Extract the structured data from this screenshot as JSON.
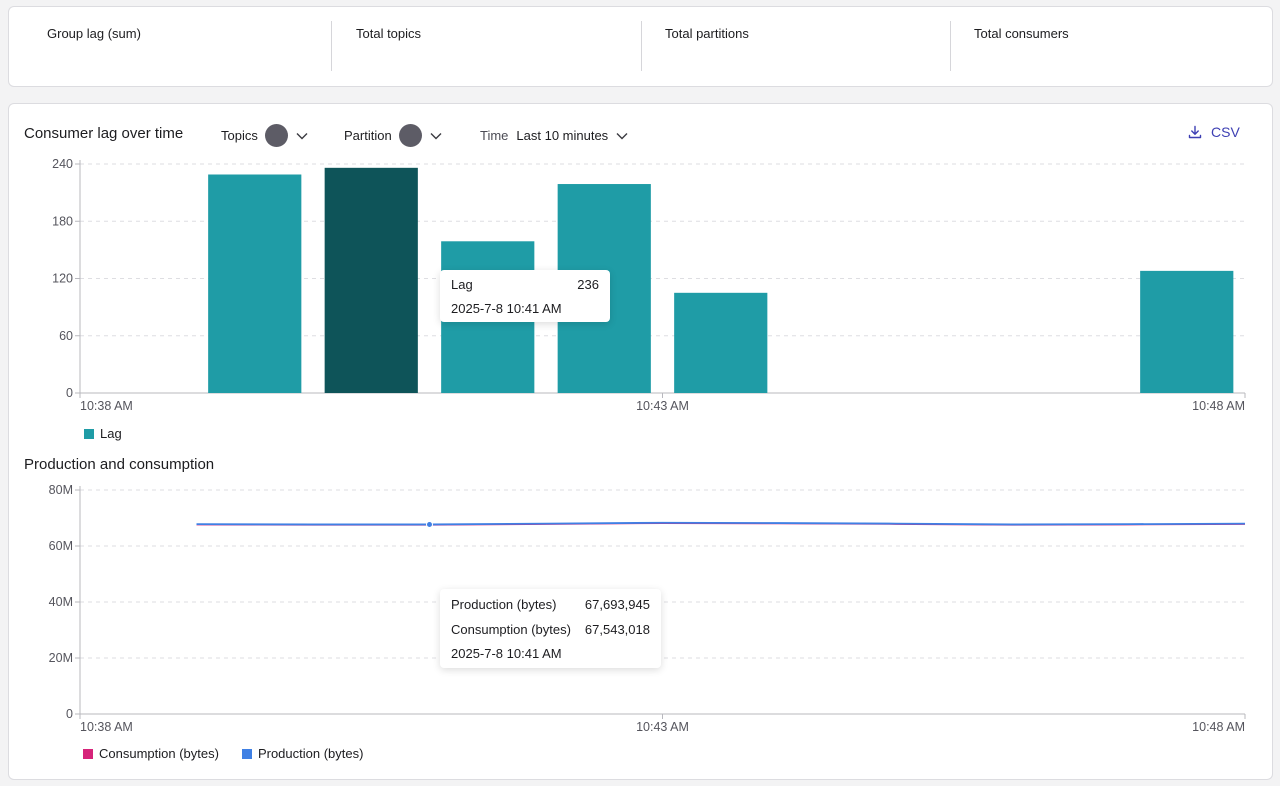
{
  "stats": [
    {
      "label": "Group lag (sum)"
    },
    {
      "label": "Total topics"
    },
    {
      "label": "Total partitions"
    },
    {
      "label": "Total consumers"
    }
  ],
  "lag_section": {
    "title": "Consumer lag over time",
    "filters": {
      "topics_label": "Topics",
      "partition_label": "Partition",
      "time_label": "Time",
      "time_value": "Last 10 minutes"
    },
    "csv_label": "CSV",
    "legend": "Lag",
    "tooltip": {
      "label": "Lag",
      "value": "236",
      "time": "2025-7-8 10:41 AM"
    }
  },
  "prod_section": {
    "title": "Production and consumption",
    "legend": [
      "Consumption (bytes)",
      "Production (bytes)"
    ],
    "tooltip": {
      "rows": [
        {
          "label": "Production (bytes)",
          "value": "67,693,945"
        },
        {
          "label": "Consumption (bytes)",
          "value": "67,543,018"
        }
      ],
      "time": "2025-7-8 10:41 AM"
    }
  },
  "colors": {
    "bar": "#1f9ca6",
    "bar_active": "#0e5459",
    "consumption": "#d6247a",
    "production": "#3f80e4",
    "accent": "#3d3fb3"
  },
  "chart_data": [
    {
      "type": "bar",
      "title": "Consumer lag over time",
      "series": [
        {
          "name": "Lag",
          "values": [
            0,
            0,
            229,
            236,
            159,
            219,
            105,
            0,
            0,
            0,
            128
          ]
        }
      ],
      "x": [
        "10:38 AM",
        "10:39 AM",
        "10:40 AM",
        "10:41 AM",
        "10:42 AM",
        "10:43 AM",
        "10:44 AM",
        "10:45 AM",
        "10:46 AM",
        "10:47 AM",
        "10:48 AM"
      ],
      "x_tick_labels": [
        "10:38 AM",
        "10:43 AM",
        "10:48 AM"
      ],
      "y_ticks": [
        0,
        60,
        120,
        180,
        240
      ],
      "ylim": [
        0,
        240
      ],
      "highlighted_index": 3,
      "grid": true,
      "legend_position": "bottom-left"
    },
    {
      "type": "line",
      "title": "Production and consumption",
      "x": [
        "10:39 AM",
        "10:40 AM",
        "10:41 AM",
        "10:42 AM",
        "10:43 AM",
        "10:44 AM",
        "10:45 AM",
        "10:46 AM",
        "10:47 AM",
        "10:48 AM"
      ],
      "series": [
        {
          "name": "Production (bytes)",
          "values": [
            67800000,
            67700000,
            67693945,
            68000000,
            68300000,
            68200000,
            68000000,
            67700000,
            67800000,
            68000000
          ]
        },
        {
          "name": "Consumption (bytes)",
          "values": [
            67650000,
            67550000,
            67543018,
            67850000,
            68150000,
            68050000,
            67850000,
            67550000,
            67650000,
            67850000
          ]
        }
      ],
      "x_tick_labels": [
        "10:38 AM",
        "10:43 AM",
        "10:48 AM"
      ],
      "y_ticks": [
        0,
        20000000,
        40000000,
        60000000,
        80000000
      ],
      "y_tick_labels": [
        "0",
        "20M",
        "40M",
        "60M",
        "80M"
      ],
      "ylim": [
        0,
        80000000
      ],
      "highlighted_index": 2,
      "grid": true,
      "legend_position": "bottom-left"
    }
  ]
}
